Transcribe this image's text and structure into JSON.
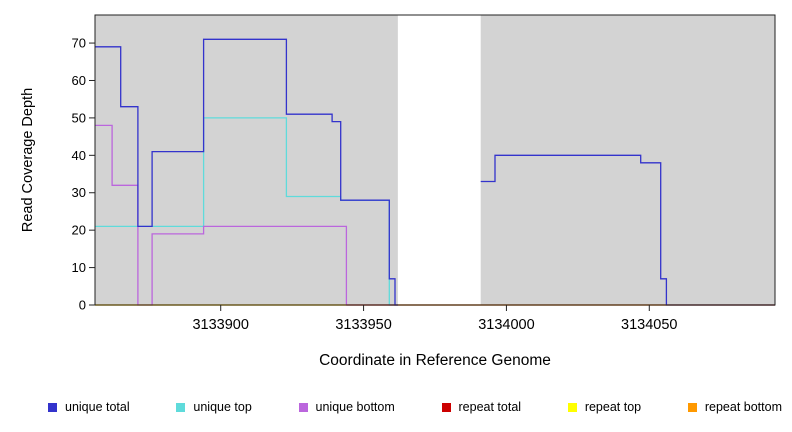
{
  "figure": {
    "background": "#ffffff"
  },
  "chart_data": {
    "type": "line",
    "subtype": "step-coverage-plot",
    "title": "",
    "xlabel": "Coordinate in Reference Genome",
    "ylabel": "Read Coverage Depth",
    "xlim": [
      3133856,
      3134094
    ],
    "ylim": [
      0,
      77.5
    ],
    "x_ticks": [
      3133900,
      3133950,
      3134000,
      3134050
    ],
    "y_ticks": [
      0,
      10,
      20,
      30,
      40,
      50,
      60,
      70
    ],
    "plot_bg": "#d3d3d3",
    "grid": false,
    "legend_position": "bottom",
    "gap_region": {
      "x0": 3133962,
      "x1": 3133991,
      "color": "#ffffff"
    },
    "draw_order": [
      "repeat top",
      "unique top",
      "unique bottom",
      "repeat bottom",
      "repeat total",
      "unique total"
    ],
    "series": [
      {
        "name": "unique total",
        "color": "#3333cc",
        "segments": [
          {
            "steps": [
              [
                3133856,
                69
              ],
              [
                3133865,
                53
              ],
              [
                3133871,
                21
              ],
              [
                3133876,
                41
              ],
              [
                3133894,
                71
              ],
              [
                3133923,
                51
              ],
              [
                3133939,
                49
              ],
              [
                3133942,
                28
              ],
              [
                3133959,
                7
              ],
              [
                3133961,
                0
              ]
            ],
            "xend": 3133962
          },
          {
            "steps": [
              [
                3133991,
                33
              ],
              [
                3133996,
                40
              ],
              [
                3134047,
                38
              ],
              [
                3134054,
                7
              ],
              [
                3134056,
                0
              ]
            ],
            "xend": 3134094
          }
        ]
      },
      {
        "name": "unique top",
        "color": "#5fdbdb",
        "segments": [
          {
            "steps": [
              [
                3133856,
                21
              ],
              [
                3133894,
                50
              ],
              [
                3133923,
                29
              ],
              [
                3133942,
                28
              ],
              [
                3133959,
                0
              ]
            ],
            "xend": 3133962
          }
        ]
      },
      {
        "name": "unique bottom",
        "color": "#bb66dd",
        "segments": [
          {
            "steps": [
              [
                3133856,
                48
              ],
              [
                3133862,
                32
              ],
              [
                3133871,
                0
              ],
              [
                3133876,
                19
              ],
              [
                3133894,
                21
              ],
              [
                3133944,
                0
              ]
            ],
            "xend": 3133962
          }
        ]
      },
      {
        "name": "repeat total",
        "color": "#cc0000",
        "segments": [
          {
            "steps": [
              [
                3133944,
                0
              ]
            ],
            "xend": 3134094
          }
        ]
      },
      {
        "name": "repeat top",
        "color": "#ffff00",
        "segments": [
          {
            "steps": [
              [
                3133856,
                0
              ]
            ],
            "xend": 3134094
          }
        ]
      },
      {
        "name": "repeat bottom",
        "color": "#ff9900",
        "segments": [
          {
            "steps": [
              [
                3133856,
                0
              ]
            ],
            "xend": 3133944
          }
        ]
      }
    ]
  }
}
